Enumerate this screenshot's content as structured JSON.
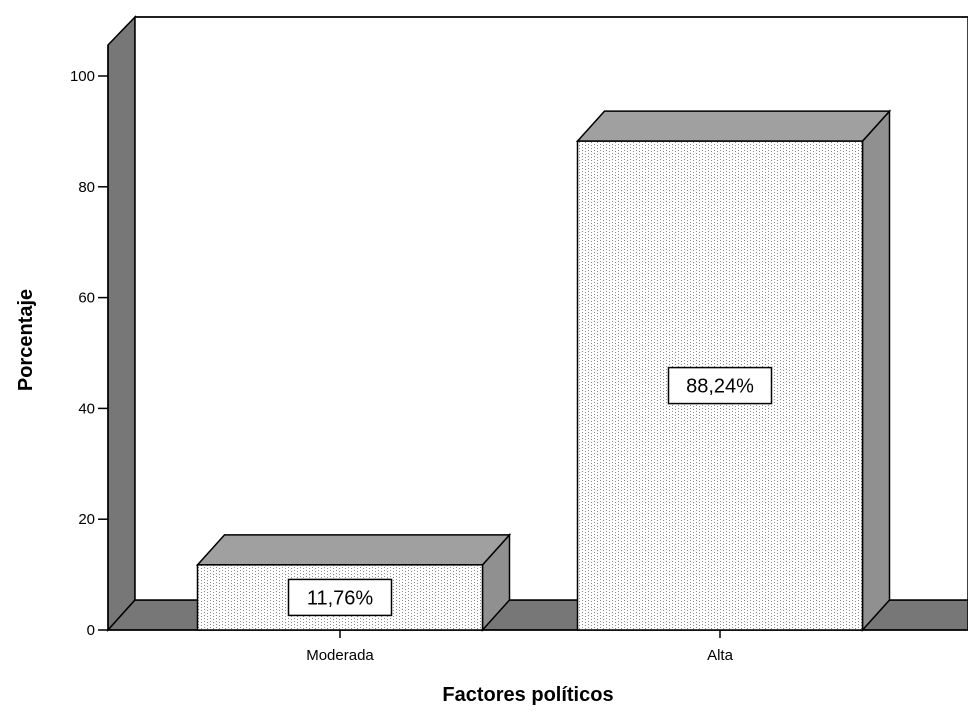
{
  "chart_data": {
    "type": "bar",
    "xlabel": "Factores políticos",
    "ylabel": "Porcentaje",
    "categories": [
      "Moderada",
      "Alta"
    ],
    "values": [
      11.76,
      88.24
    ],
    "data_labels": [
      "11,76%",
      "88,24%"
    ],
    "ylim": [
      0,
      110
    ],
    "yticks": [
      0,
      20,
      40,
      60,
      80,
      100
    ],
    "ytick_labels": [
      "0",
      "20",
      "40",
      "60",
      "80",
      "100"
    ],
    "style": "3d",
    "grid": false,
    "legend": "none",
    "colors": {
      "bar_face": "#ffffff",
      "bar_pattern": "#8a8a8a",
      "bar_top": "#a0a0a0",
      "bar_side": "#909090",
      "back_wall": "#ffffff",
      "left_wall": "#777777",
      "floor": "#777777",
      "outline": "#000000"
    }
  }
}
